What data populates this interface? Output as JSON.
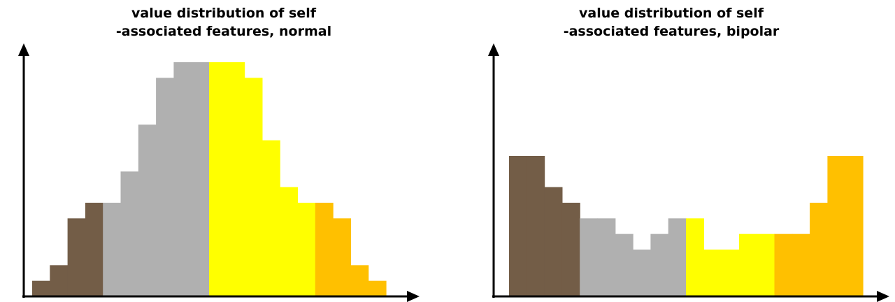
{
  "colors": {
    "brown": "#735d47",
    "gray": "#b0b0b0",
    "yellow": "#ffff00",
    "orange": "#ffc000",
    "axis": "#000000"
  },
  "chart_data": [
    {
      "type": "bar",
      "title_line1": "value distribution of self",
      "title_line2": "-associated features, normal",
      "xlabel": "",
      "ylabel": "",
      "grid": false,
      "legend": "none",
      "ylim": [
        0,
        15
      ],
      "bins": [
        {
          "value": 1,
          "group": "brown"
        },
        {
          "value": 2,
          "group": "brown"
        },
        {
          "value": 5,
          "group": "brown"
        },
        {
          "value": 6,
          "group": "brown"
        },
        {
          "value": 6,
          "group": "gray"
        },
        {
          "value": 8,
          "group": "gray"
        },
        {
          "value": 11,
          "group": "gray"
        },
        {
          "value": 14,
          "group": "gray"
        },
        {
          "value": 15,
          "group": "gray"
        },
        {
          "value": 15,
          "group": "gray"
        },
        {
          "value": 15,
          "group": "yellow"
        },
        {
          "value": 15,
          "group": "yellow"
        },
        {
          "value": 14,
          "group": "yellow"
        },
        {
          "value": 10,
          "group": "yellow"
        },
        {
          "value": 7,
          "group": "yellow"
        },
        {
          "value": 6,
          "group": "yellow"
        },
        {
          "value": 6,
          "group": "orange"
        },
        {
          "value": 5,
          "group": "orange"
        },
        {
          "value": 2,
          "group": "orange"
        },
        {
          "value": 1,
          "group": "orange"
        }
      ]
    },
    {
      "type": "bar",
      "title_line1": "value distribution of self",
      "title_line2": "-associated features, bipolar",
      "xlabel": "",
      "ylabel": "",
      "grid": false,
      "legend": "none",
      "ylim": [
        0,
        15
      ],
      "bins": [
        {
          "value": 9,
          "group": "brown"
        },
        {
          "value": 9,
          "group": "brown"
        },
        {
          "value": 7,
          "group": "brown"
        },
        {
          "value": 6,
          "group": "brown"
        },
        {
          "value": 5,
          "group": "gray"
        },
        {
          "value": 5,
          "group": "gray"
        },
        {
          "value": 4,
          "group": "gray"
        },
        {
          "value": 3,
          "group": "gray"
        },
        {
          "value": 4,
          "group": "gray"
        },
        {
          "value": 5,
          "group": "gray"
        },
        {
          "value": 5,
          "group": "yellow"
        },
        {
          "value": 3,
          "group": "yellow"
        },
        {
          "value": 3,
          "group": "yellow"
        },
        {
          "value": 4,
          "group": "yellow"
        },
        {
          "value": 4,
          "group": "yellow"
        },
        {
          "value": 4,
          "group": "orange"
        },
        {
          "value": 4,
          "group": "orange"
        },
        {
          "value": 6,
          "group": "orange"
        },
        {
          "value": 9,
          "group": "orange"
        },
        {
          "value": 9,
          "group": "orange"
        }
      ]
    }
  ]
}
